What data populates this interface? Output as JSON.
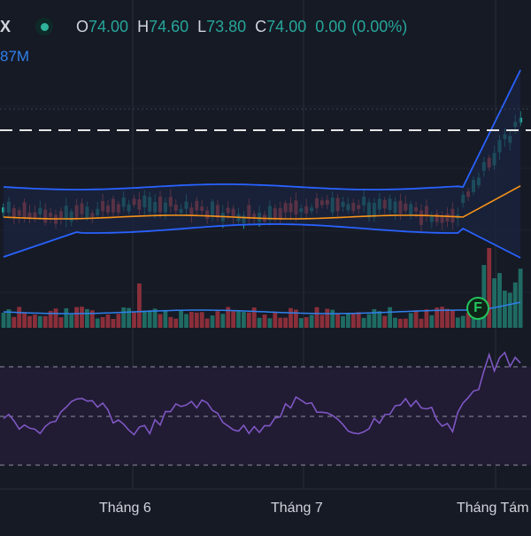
{
  "header": {
    "symbol_fragment": "X",
    "open_label": "O",
    "open_value": "74.00",
    "high_label": "H",
    "high_value": "74.60",
    "low_label": "L",
    "low_value": "73.80",
    "close_label": "C",
    "close_value": "74.00",
    "change_value": "0.00",
    "change_pct": "(0.00%)",
    "volume_fragment": "87M"
  },
  "x_axis": {
    "labels": [
      "Tháng 6",
      "Tháng 7",
      "Tháng Tám"
    ]
  },
  "event_badge": {
    "label": "F"
  },
  "colors": {
    "up": "#26a69a",
    "down": "#ef5350",
    "ma": "#f7931a",
    "bands": "#2962ff",
    "rsi": "#7e57c2",
    "volume_ma": "#2f80ed"
  }
}
